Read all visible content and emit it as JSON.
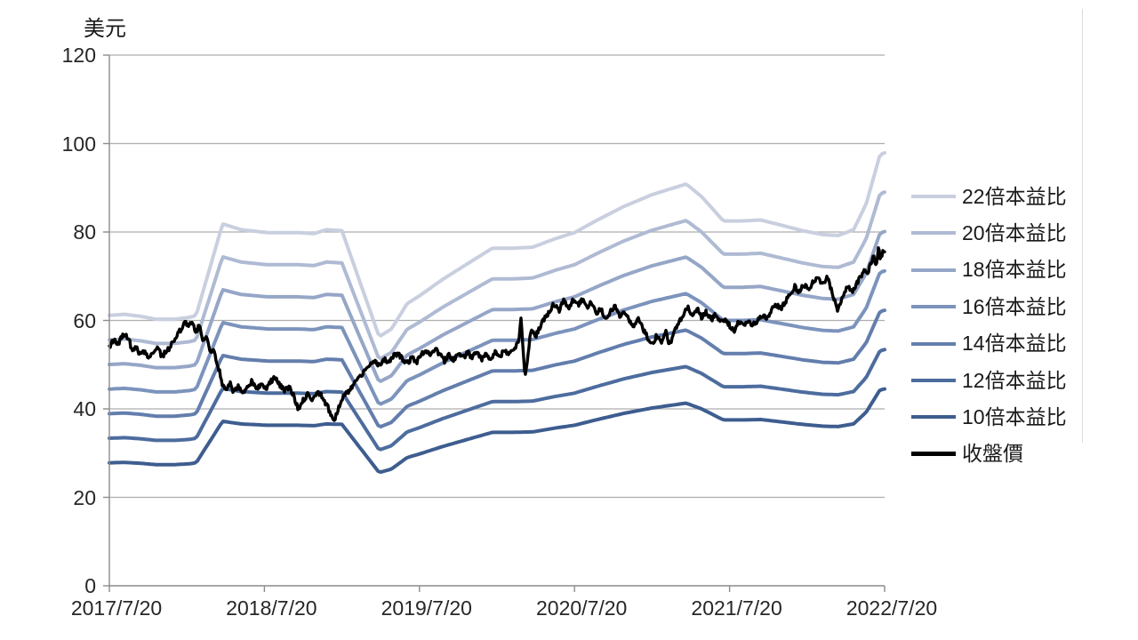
{
  "chart_data": {
    "type": "line",
    "title": "",
    "ylabel": "美元",
    "ylim": [
      0,
      120
    ],
    "y_ticks": [
      0,
      20,
      40,
      60,
      80,
      100,
      120
    ],
    "x_tick_labels": [
      "2017/7/20",
      "2018/7/20",
      "2019/7/20",
      "2020/7/20",
      "2021/7/20",
      "2022/7/20"
    ],
    "x_range_years": 5,
    "grid": true,
    "legend_position": "right",
    "description": "Stock PE-band chart: each 本益比 band = trailing EPS (美元) multiplied by the PE multiple; black line is daily closing price",
    "pe_bands": [
      {
        "multiple": 22,
        "label": "22倍本益比",
        "color": "#C9CFDF"
      },
      {
        "multiple": 20,
        "label": "20倍本益比",
        "color": "#AFBAD3"
      },
      {
        "multiple": 18,
        "label": "18倍本益比",
        "color": "#95A6C7"
      },
      {
        "multiple": 16,
        "label": "16倍本益比",
        "color": "#7C93BC"
      },
      {
        "multiple": 14,
        "label": "14倍本益比",
        "color": "#637EAD"
      },
      {
        "multiple": 12,
        "label": "12倍本益比",
        "color": "#4D6C9E"
      },
      {
        "multiple": 10,
        "label": "10倍本益比",
        "color": "#3E5D8F"
      }
    ],
    "eps_anchors": [
      [
        0.0,
        2.78
      ],
      [
        0.1,
        2.79
      ],
      [
        0.2,
        2.77
      ],
      [
        0.3,
        2.74
      ],
      [
        0.42,
        2.74
      ],
      [
        0.52,
        2.76
      ],
      [
        0.56,
        2.78
      ],
      [
        0.73,
        3.72
      ],
      [
        0.85,
        3.66
      ],
      [
        1.02,
        3.63
      ],
      [
        1.22,
        3.63
      ],
      [
        1.32,
        3.62
      ],
      [
        1.4,
        3.66
      ],
      [
        1.5,
        3.65
      ],
      [
        1.74,
        2.56
      ],
      [
        1.82,
        2.64
      ],
      [
        1.92,
        2.9
      ],
      [
        2.0,
        2.98
      ],
      [
        2.15,
        3.15
      ],
      [
        2.3,
        3.3
      ],
      [
        2.47,
        3.47
      ],
      [
        2.6,
        3.47
      ],
      [
        2.73,
        3.48
      ],
      [
        2.88,
        3.57
      ],
      [
        3.0,
        3.63
      ],
      [
        3.16,
        3.77
      ],
      [
        3.32,
        3.9
      ],
      [
        3.5,
        4.02
      ],
      [
        3.72,
        4.13
      ],
      [
        3.82,
        4.0
      ],
      [
        3.96,
        3.75
      ],
      [
        4.08,
        3.75
      ],
      [
        4.2,
        3.76
      ],
      [
        4.35,
        3.7
      ],
      [
        4.47,
        3.65
      ],
      [
        4.6,
        3.61
      ],
      [
        4.7,
        3.6
      ],
      [
        4.8,
        3.66
      ],
      [
        4.88,
        3.92
      ],
      [
        4.97,
        4.43
      ],
      [
        5.0,
        4.45
      ]
    ],
    "close_series": {
      "label": "收盤價",
      "color": "#000000",
      "anchors": [
        [
          0.0,
          54.2
        ],
        [
          0.03,
          55.6
        ],
        [
          0.05,
          54.0
        ],
        [
          0.08,
          56.2
        ],
        [
          0.1,
          57.0
        ],
        [
          0.13,
          55.2
        ],
        [
          0.15,
          53.0
        ],
        [
          0.17,
          54.5
        ],
        [
          0.19,
          51.8
        ],
        [
          0.22,
          53.2
        ],
        [
          0.25,
          51.5
        ],
        [
          0.28,
          52.8
        ],
        [
          0.31,
          53.5
        ],
        [
          0.34,
          52.0
        ],
        [
          0.37,
          53.0
        ],
        [
          0.4,
          54.5
        ],
        [
          0.43,
          56.0
        ],
        [
          0.46,
          58.0
        ],
        [
          0.49,
          59.8
        ],
        [
          0.51,
          58.3
        ],
        [
          0.53,
          59.6
        ],
        [
          0.56,
          57.5
        ],
        [
          0.58,
          58.8
        ],
        [
          0.6,
          55.5
        ],
        [
          0.63,
          56.2
        ],
        [
          0.65,
          52.5
        ],
        [
          0.67,
          54.0
        ],
        [
          0.69,
          50.8
        ],
        [
          0.71,
          48.5
        ],
        [
          0.73,
          45.5
        ],
        [
          0.75,
          44.2
        ],
        [
          0.78,
          45.8
        ],
        [
          0.8,
          44.0
        ],
        [
          0.83,
          45.2
        ],
        [
          0.86,
          43.8
        ],
        [
          0.89,
          45.0
        ],
        [
          0.92,
          46.3
        ],
        [
          0.95,
          44.5
        ],
        [
          0.98,
          45.5
        ],
        [
          1.01,
          44.3
        ],
        [
          1.04,
          46.2
        ],
        [
          1.07,
          47.2
        ],
        [
          1.1,
          45.5
        ],
        [
          1.13,
          44.2
        ],
        [
          1.16,
          45.0
        ],
        [
          1.19,
          42.8
        ],
        [
          1.22,
          39.8
        ],
        [
          1.25,
          42.0
        ],
        [
          1.28,
          43.2
        ],
        [
          1.31,
          41.8
        ],
        [
          1.34,
          44.2
        ],
        [
          1.37,
          42.8
        ],
        [
          1.4,
          41.0
        ],
        [
          1.43,
          38.8
        ],
        [
          1.45,
          37.2
        ],
        [
          1.48,
          40.5
        ],
        [
          1.51,
          42.8
        ],
        [
          1.55,
          44.3
        ],
        [
          1.59,
          46.0
        ],
        [
          1.63,
          47.8
        ],
        [
          1.67,
          49.3
        ],
        [
          1.71,
          51.0
        ],
        [
          1.74,
          50.0
        ],
        [
          1.77,
          51.3
        ],
        [
          1.8,
          50.3
        ],
        [
          1.83,
          51.8
        ],
        [
          1.86,
          52.6
        ],
        [
          1.89,
          51.2
        ],
        [
          1.92,
          50.2
        ],
        [
          1.95,
          51.5
        ],
        [
          1.98,
          50.5
        ],
        [
          2.01,
          52.3
        ],
        [
          2.04,
          53.2
        ],
        [
          2.07,
          52.2
        ],
        [
          2.1,
          53.6
        ],
        [
          2.13,
          52.4
        ],
        [
          2.16,
          50.8
        ],
        [
          2.19,
          52.2
        ],
        [
          2.22,
          51.0
        ],
        [
          2.25,
          52.5
        ],
        [
          2.28,
          51.4
        ],
        [
          2.31,
          52.8
        ],
        [
          2.34,
          51.6
        ],
        [
          2.37,
          52.6
        ],
        [
          2.4,
          51.3
        ],
        [
          2.43,
          52.4
        ],
        [
          2.46,
          51.4
        ],
        [
          2.49,
          52.8
        ],
        [
          2.52,
          52.0
        ],
        [
          2.55,
          53.3
        ],
        [
          2.58,
          52.5
        ],
        [
          2.61,
          53.8
        ],
        [
          2.64,
          55.0
        ],
        [
          2.655,
          60.8
        ],
        [
          2.67,
          53.0
        ],
        [
          2.68,
          46.8
        ],
        [
          2.7,
          52.5
        ],
        [
          2.72,
          57.8
        ],
        [
          2.75,
          56.5
        ],
        [
          2.78,
          58.8
        ],
        [
          2.81,
          60.5
        ],
        [
          2.84,
          62.3
        ],
        [
          2.87,
          63.8
        ],
        [
          2.9,
          62.3
        ],
        [
          2.93,
          64.3
        ],
        [
          2.96,
          62.8
        ],
        [
          2.99,
          64.6
        ],
        [
          3.02,
          63.3
        ],
        [
          3.05,
          64.8
        ],
        [
          3.08,
          63.0
        ],
        [
          3.11,
          64.2
        ],
        [
          3.14,
          61.5
        ],
        [
          3.17,
          62.8
        ],
        [
          3.2,
          60.3
        ],
        [
          3.23,
          62.0
        ],
        [
          3.26,
          63.2
        ],
        [
          3.29,
          61.0
        ],
        [
          3.32,
          62.3
        ],
        [
          3.35,
          60.0
        ],
        [
          3.38,
          58.8
        ],
        [
          3.41,
          60.2
        ],
        [
          3.44,
          58.3
        ],
        [
          3.47,
          56.2
        ],
        [
          3.5,
          54.4
        ],
        [
          3.53,
          56.6
        ],
        [
          3.56,
          55.2
        ],
        [
          3.59,
          57.3
        ],
        [
          3.61,
          54.3
        ],
        [
          3.64,
          57.0
        ],
        [
          3.67,
          59.3
        ],
        [
          3.7,
          61.3
        ],
        [
          3.73,
          63.2
        ],
        [
          3.76,
          61.2
        ],
        [
          3.79,
          62.6
        ],
        [
          3.82,
          60.8
        ],
        [
          3.85,
          62.0
        ],
        [
          3.88,
          60.2
        ],
        [
          3.91,
          61.3
        ],
        [
          3.94,
          59.4
        ],
        [
          3.97,
          60.6
        ],
        [
          4.0,
          58.8
        ],
        [
          4.03,
          57.8
        ],
        [
          4.06,
          59.6
        ],
        [
          4.09,
          58.6
        ],
        [
          4.12,
          59.9
        ],
        [
          4.15,
          58.9
        ],
        [
          4.18,
          60.0
        ],
        [
          4.21,
          61.2
        ],
        [
          4.24,
          60.3
        ],
        [
          4.27,
          62.4
        ],
        [
          4.3,
          63.6
        ],
        [
          4.33,
          62.7
        ],
        [
          4.36,
          64.3
        ],
        [
          4.39,
          66.0
        ],
        [
          4.42,
          67.6
        ],
        [
          4.45,
          66.4
        ],
        [
          4.48,
          68.2
        ],
        [
          4.51,
          67.2
        ],
        [
          4.54,
          68.6
        ],
        [
          4.57,
          69.6
        ],
        [
          4.6,
          68.2
        ],
        [
          4.63,
          69.8
        ],
        [
          4.66,
          66.5
        ],
        [
          4.68,
          64.2
        ],
        [
          4.7,
          62.2
        ],
        [
          4.73,
          65.6
        ],
        [
          4.76,
          67.8
        ],
        [
          4.79,
          66.6
        ],
        [
          4.82,
          68.4
        ],
        [
          4.85,
          70.0
        ],
        [
          4.87,
          72.2
        ],
        [
          4.89,
          70.6
        ],
        [
          4.91,
          73.0
        ],
        [
          4.93,
          74.6
        ],
        [
          4.945,
          72.4
        ],
        [
          4.96,
          76.2
        ],
        [
          4.975,
          73.8
        ],
        [
          4.99,
          75.8
        ],
        [
          5.0,
          75.4
        ]
      ]
    },
    "legend_entries": [
      "22倍本益比",
      "20倍本益比",
      "18倍本益比",
      "16倍本益比",
      "14倍本益比",
      "12倍本益比",
      "10倍本益比",
      "收盤價"
    ],
    "colors": {
      "gridline": "#ADADAD",
      "axis": "#8C8C8C",
      "tick_text": "#262626",
      "close_line": "#000000"
    }
  }
}
